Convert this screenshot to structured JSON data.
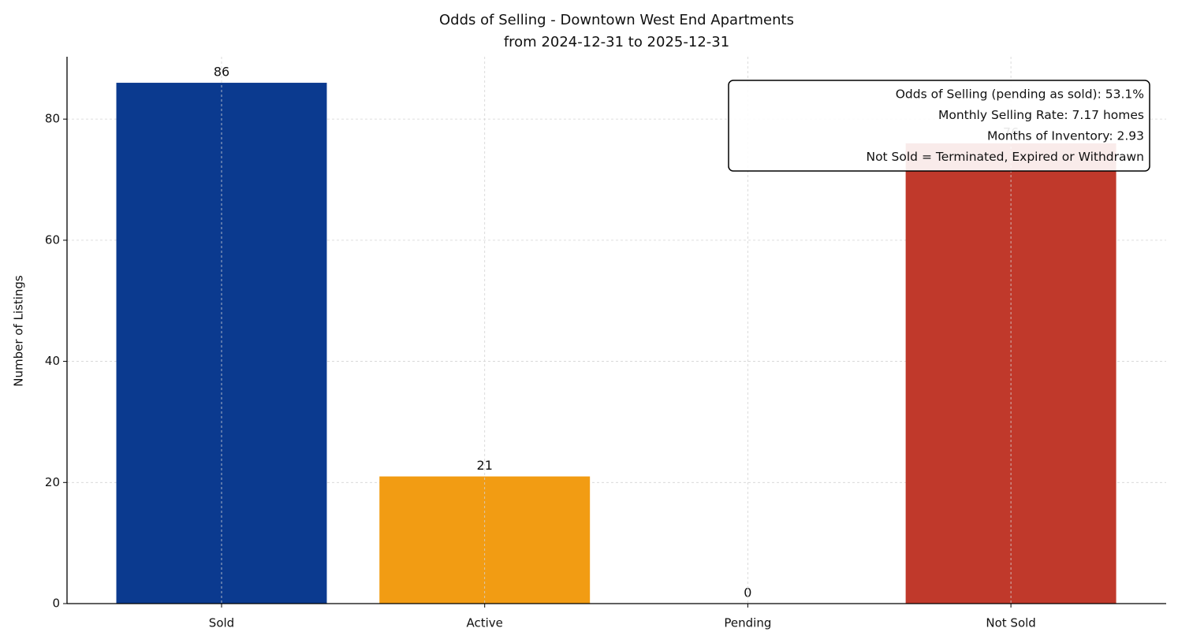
{
  "chart_data": {
    "type": "bar",
    "title": [
      "Odds of Selling - Downtown West End Apartments",
      "from 2024-12-31 to 2025-12-31"
    ],
    "y_label": "Number of Listings",
    "categories": [
      "Sold",
      "Active",
      "Pending",
      "Not Sold"
    ],
    "values": [
      86,
      21,
      0,
      76
    ],
    "colors": [
      "#0b3a8f",
      "#f29c13",
      null,
      "#c0392b"
    ],
    "ylim": [
      0,
      90.3
    ],
    "yticks": [
      0,
      20,
      40,
      60,
      80
    ],
    "grid": true,
    "annotations": [
      "Odds of Selling (pending as sold): 53.1%",
      "Monthly Selling Rate: 7.17 homes",
      "Months of Inventory: 2.93",
      "Not Sold = Terminated, Expired or Withdrawn"
    ]
  }
}
